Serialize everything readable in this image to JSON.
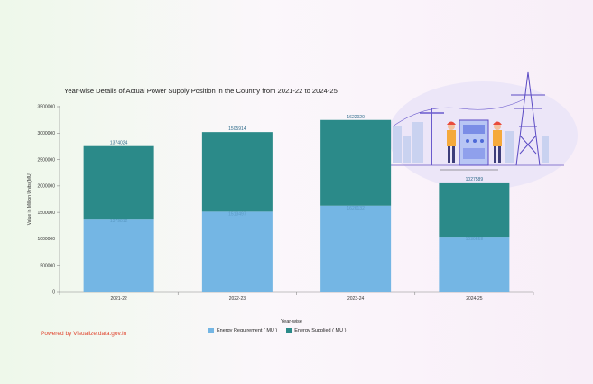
{
  "chart_data": {
    "type": "bar",
    "stacked": true,
    "title": "Year-wise Details of Actual Power Supply Position in the Country from 2021-22 to 2024-25",
    "xlabel": "Year-wise",
    "ylabel": "Value in Million Units (MU)",
    "categories": [
      "2021-22",
      "2022-23",
      "2023-24",
      "2024-25"
    ],
    "ylim": [
      0,
      3500000
    ],
    "yticks": [
      "0",
      "500000",
      "1000000",
      "1500000",
      "2000000",
      "2500000",
      "3000000",
      "3500000"
    ],
    "series": [
      {
        "name": "Energy Requirement ( MU )",
        "color": "#74b6e4",
        "values": [
          1379812,
          1513497,
          1626132,
          1039558
        ],
        "labels": [
          "1379812",
          "1513497",
          "1626132",
          "1039558"
        ]
      },
      {
        "name": "Energy Supplied ( MU )",
        "color": "#2b8a89",
        "values": [
          1374024,
          1505914,
          1622020,
          1027589
        ],
        "labels": [
          "1374024",
          "1505914",
          "1622020",
          "1027589"
        ]
      }
    ],
    "grid": false,
    "legend_position": "bottom"
  },
  "footer": {
    "powered_by": "Powered by Visualize.data.gov.in"
  },
  "colors": {
    "accent": "#e0452e"
  }
}
